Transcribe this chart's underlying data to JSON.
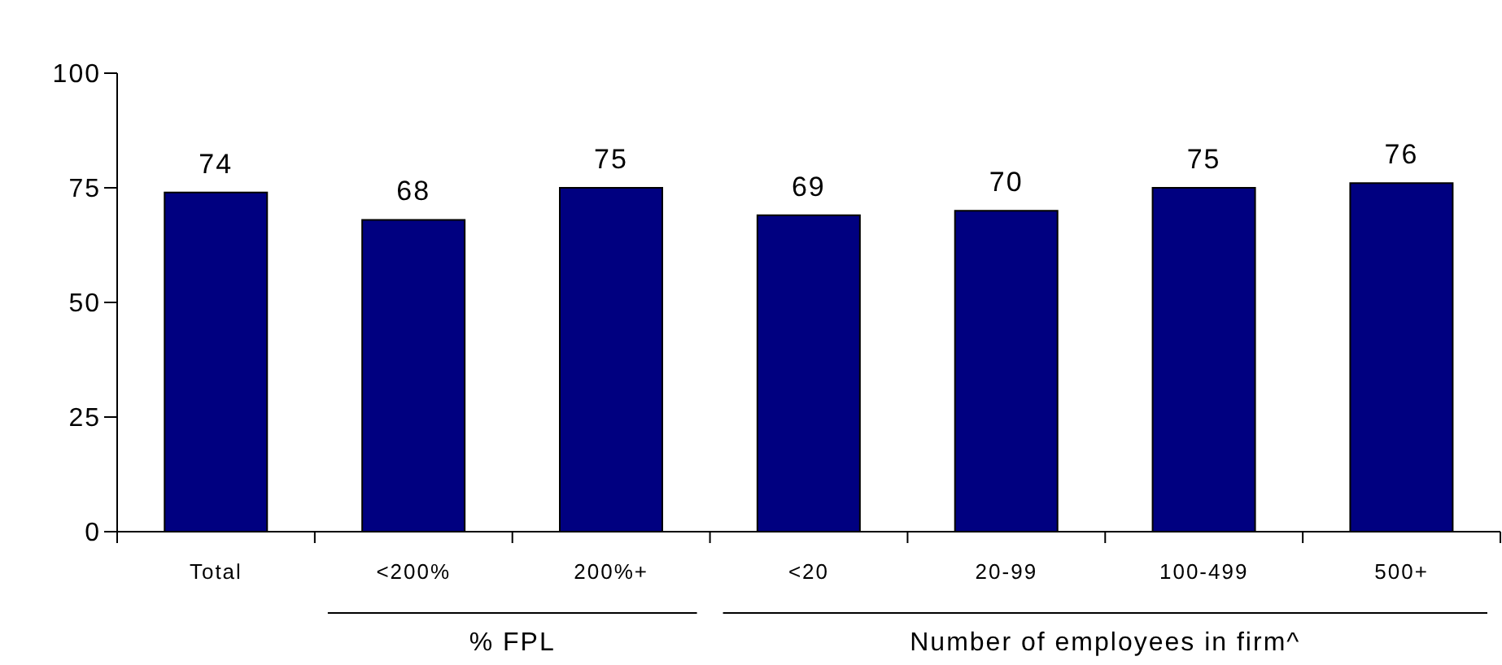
{
  "chart_data": {
    "type": "bar",
    "categories": [
      "Total",
      "<200%",
      "200%+",
      "<20",
      "20-99",
      "100-499",
      "500+"
    ],
    "values": [
      74,
      68,
      75,
      69,
      70,
      75,
      76
    ],
    "color": "#000080",
    "ylim": [
      0,
      100
    ],
    "yticks": [
      0,
      25,
      50,
      75,
      100
    ],
    "data_labels": true,
    "annotations": [
      "% FPL",
      "Number of employees in firm^"
    ]
  }
}
